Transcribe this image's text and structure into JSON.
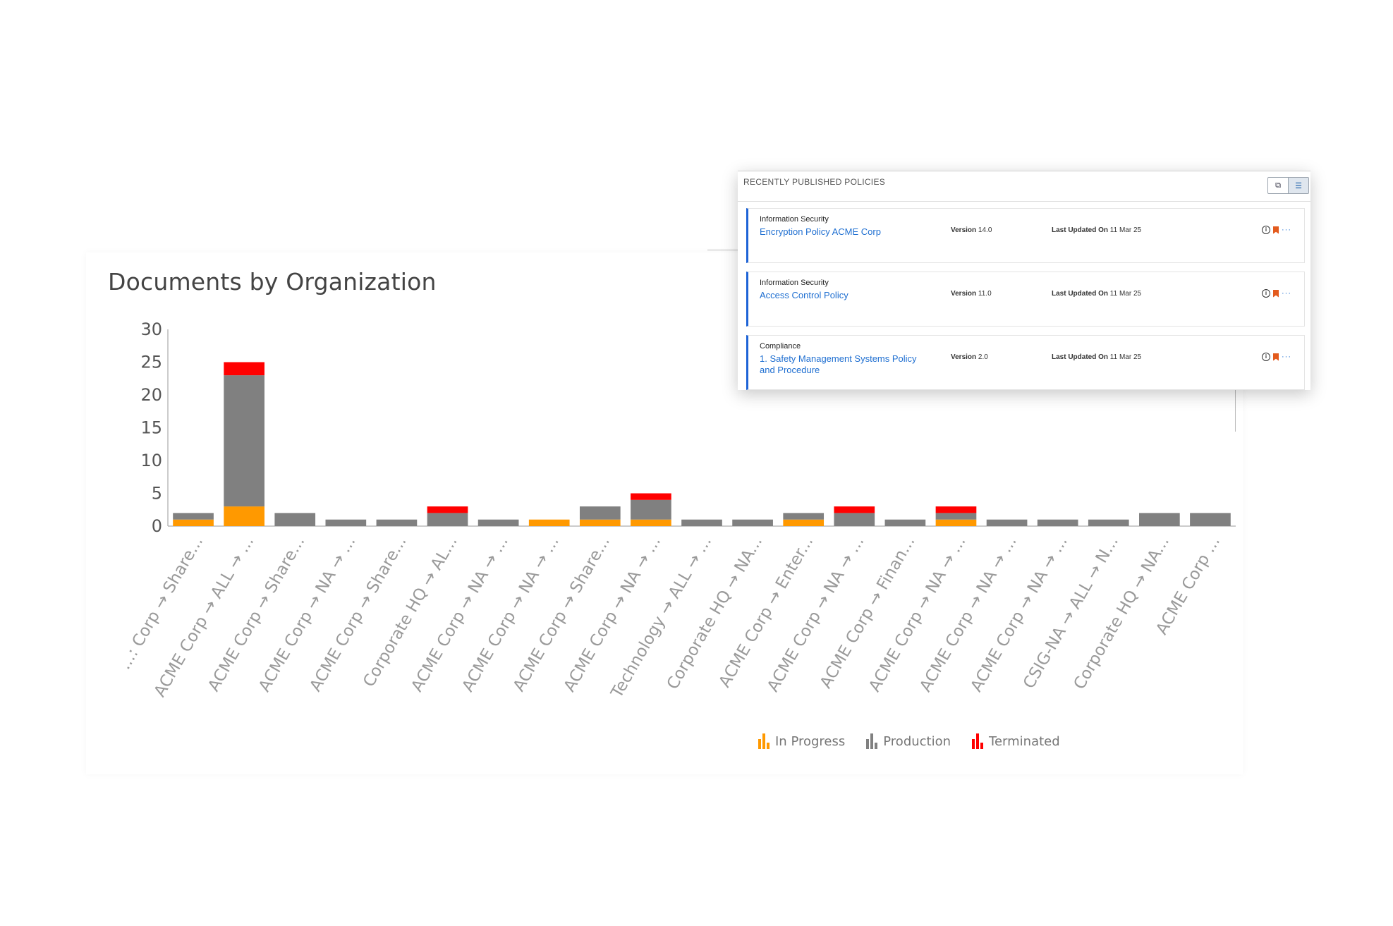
{
  "chart_data": {
    "type": "bar",
    "stacked": true,
    "title": "Documents by Organization",
    "categories": [
      "...: Corp → Share...",
      "ACME Corp → ALL → ...",
      "ACME Corp → Share...",
      "ACME Corp → NA → ...",
      "ACME Corp → Share...",
      "Corporate HQ → AL...",
      "ACME Corp → NA → ...",
      "ACME Corp → NA → ...",
      "ACME Corp → Share...",
      "ACME Corp → NA → ...",
      "Technology → ALL → ...",
      "Corporate HQ → NA...",
      "ACME Corp → Enter...",
      "ACME Corp → NA → ...",
      "ACME Corp → Finan...",
      "ACME Corp → NA → ...",
      "ACME Corp → NA → ...",
      "ACME Corp → NA → ...",
      "CSIG-NA → ALL → N...",
      "Corporate HQ → NA...",
      "ACME Corp ..."
    ],
    "series": [
      {
        "name": "In Progress",
        "color": "#ff9900",
        "values": [
          1,
          3,
          0,
          0,
          0,
          0,
          0,
          1,
          1,
          1,
          0,
          0,
          1,
          0,
          0,
          1,
          0,
          0,
          0,
          0,
          0
        ]
      },
      {
        "name": "Production",
        "color": "#808080",
        "values": [
          1,
          20,
          2,
          1,
          1,
          2,
          1,
          0,
          2,
          3,
          1,
          1,
          1,
          2,
          1,
          1,
          1,
          1,
          1,
          2,
          2
        ]
      },
      {
        "name": "Terminated",
        "color": "#ff0000",
        "values": [
          0,
          2,
          0,
          0,
          0,
          1,
          0,
          0,
          0,
          1,
          0,
          0,
          0,
          1,
          0,
          1,
          0,
          0,
          0,
          0,
          0
        ]
      }
    ],
    "yticks": [
      "0",
      "5",
      "10",
      "15",
      "20",
      "25",
      "30"
    ],
    "ylim": [
      0,
      30
    ],
    "xlabel": "",
    "ylabel": "",
    "grid": false,
    "legend_position": "bottom-right"
  },
  "legend": [
    {
      "label": "In Progress",
      "color": "#ff9900"
    },
    {
      "label": "Production",
      "color": "#808080"
    },
    {
      "label": "Terminated",
      "color": "#ff0000"
    }
  ],
  "policies": {
    "title": "RECENTLY PUBLISHED POLICIES",
    "grid_view_icon": "window-icon",
    "list_view_icon": "list-icon",
    "items": [
      {
        "category": "Information Security",
        "name": "Encryption Policy ACME Corp",
        "version_label": "Version",
        "version": "14.0",
        "updated_label": "Last Updated On",
        "updated": "11 Mar 25"
      },
      {
        "category": "Information Security",
        "name": "Access Control Policy",
        "version_label": "Version",
        "version": "11.0",
        "updated_label": "Last Updated On",
        "updated": "11 Mar 25"
      },
      {
        "category": "Compliance",
        "name": "1. Safety Management Systems Policy and Procedure",
        "version_label": "Version",
        "version": "2.0",
        "updated_label": "Last Updated On",
        "updated": "11 Mar 25"
      }
    ],
    "info_glyph": "i",
    "more_glyph": "···"
  }
}
